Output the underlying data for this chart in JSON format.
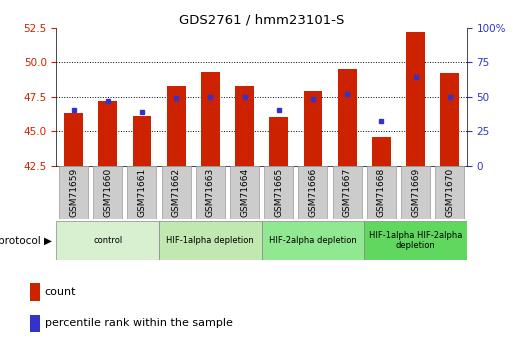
{
  "title": "GDS2761 / hmm23101-S",
  "samples": [
    "GSM71659",
    "GSM71660",
    "GSM71661",
    "GSM71662",
    "GSM71663",
    "GSM71664",
    "GSM71665",
    "GSM71666",
    "GSM71667",
    "GSM71668",
    "GSM71669",
    "GSM71670"
  ],
  "bar_tops": [
    46.3,
    47.2,
    46.1,
    48.3,
    49.3,
    48.3,
    46.0,
    47.9,
    49.5,
    44.6,
    52.2,
    49.2
  ],
  "bar_base": 42.5,
  "blue_dots": [
    46.5,
    47.2,
    46.4,
    47.4,
    47.5,
    47.5,
    46.5,
    47.3,
    47.7,
    45.7,
    48.9,
    47.5
  ],
  "ylim_left": [
    42.5,
    52.5
  ],
  "ylim_right": [
    0,
    100
  ],
  "yticks_left": [
    42.5,
    45.0,
    47.5,
    50.0,
    52.5
  ],
  "yticks_right": [
    0,
    25,
    50,
    75,
    100
  ],
  "grid_values": [
    45.0,
    47.5,
    50.0
  ],
  "bar_color": "#cc2200",
  "dot_color": "#3333cc",
  "bar_width": 0.55,
  "protocol_groups": [
    {
      "label": "control",
      "start": 0,
      "end": 2,
      "color": "#d8f0d0"
    },
    {
      "label": "HIF-1alpha depletion",
      "start": 3,
      "end": 5,
      "color": "#c0e8b0"
    },
    {
      "label": "HIF-2alpha depletion",
      "start": 6,
      "end": 8,
      "color": "#90e890"
    },
    {
      "label": "HIF-1alpha HIF-2alpha\ndepletion",
      "start": 9,
      "end": 11,
      "color": "#60d860"
    }
  ],
  "tick_color_left": "#cc2200",
  "tick_color_right": "#3333cc",
  "sample_box_color": "#cccccc",
  "sample_box_edge": "#999999"
}
